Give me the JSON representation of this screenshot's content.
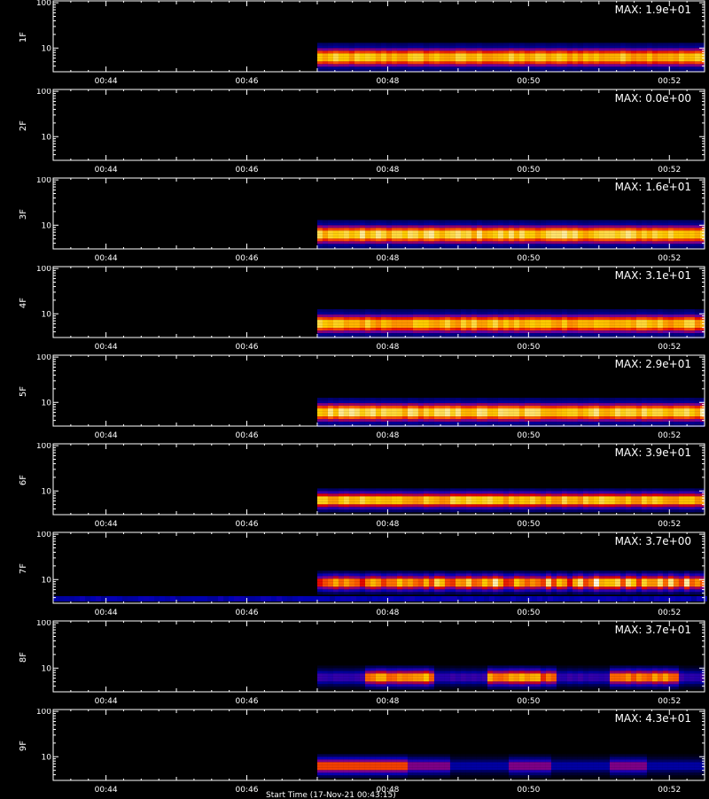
{
  "chart_data": {
    "type": "heatmap",
    "x_range": [
      "00:43:15",
      "00:52:30"
    ],
    "x_ticks": [
      "00:44",
      "00:46",
      "00:48",
      "00:50",
      "00:52"
    ],
    "y_scale": "log",
    "y_range": [
      3,
      110
    ],
    "y_ticks": [
      "10",
      "100"
    ],
    "colormap": [
      "#000000",
      "#0000b4",
      "#6a00a0",
      "#e00000",
      "#ff6a00",
      "#ffcc00",
      "#ffffff"
    ],
    "data_start": "00:47:00",
    "panels": [
      {
        "label": "1F",
        "max_label": "MAX: 1.9e+01",
        "band": {
          "y_center": 6.2,
          "rows": 3,
          "intensity": 0.8,
          "pattern": "uniform"
        }
      },
      {
        "label": "2F",
        "max_label": "MAX: 0.0e+00",
        "band": null
      },
      {
        "label": "3F",
        "max_label": "MAX: 1.6e+01",
        "band": {
          "y_center": 6.2,
          "rows": 3,
          "intensity": 0.85,
          "pattern": "uniform"
        }
      },
      {
        "label": "4F",
        "max_label": "MAX: 3.1e+01",
        "band": {
          "y_center": 6.0,
          "rows": 3,
          "intensity": 0.8,
          "pattern": "uniform"
        }
      },
      {
        "label": "5F",
        "max_label": "MAX: 2.9e+01",
        "band": {
          "y_center": 6.0,
          "rows": 3,
          "intensity": 0.85,
          "pattern": "uniform"
        }
      },
      {
        "label": "6F",
        "max_label": "MAX: 3.9e+01",
        "band": {
          "y_center": 6.2,
          "rows": 2,
          "intensity": 0.8,
          "pattern": "uniform"
        }
      },
      {
        "label": "7F",
        "max_label": "MAX: 3.7e+00",
        "band": {
          "y_center": 8.5,
          "rows": 2,
          "intensity": 0.75,
          "pattern": "noisy",
          "background": true
        }
      },
      {
        "label": "8F",
        "max_label": "MAX: 3.7e+01",
        "band": {
          "y_center": 6.2,
          "rows": 2,
          "intensity": 0.7,
          "pattern": "patchy"
        }
      },
      {
        "label": "9F",
        "max_label": "MAX: 4.3e+01",
        "band": {
          "y_center": 6.2,
          "rows": 2,
          "intensity": 0.6,
          "pattern": "fading"
        }
      }
    ]
  },
  "x_axis_title": "Start Time (17-Nov-21 00:43:15)"
}
